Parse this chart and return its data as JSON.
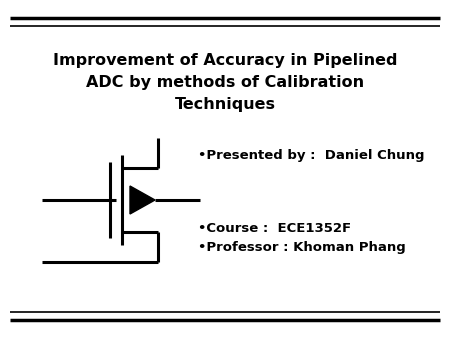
{
  "title_line1": "Improvement of Accuracy in Pipelined",
  "title_line2": "ADC by methods of Calibration",
  "title_line3": "Techniques",
  "bullet1": "•Presented by :  Daniel Chung",
  "bullet2": "•Course :  ECE1352F",
  "bullet3": "•Professor : Khoman Phang",
  "bg_color": "#ffffff",
  "text_color": "#000000",
  "title_fontsize": 11.5,
  "bullet_fontsize": 9.5,
  "line_color": "#000000"
}
